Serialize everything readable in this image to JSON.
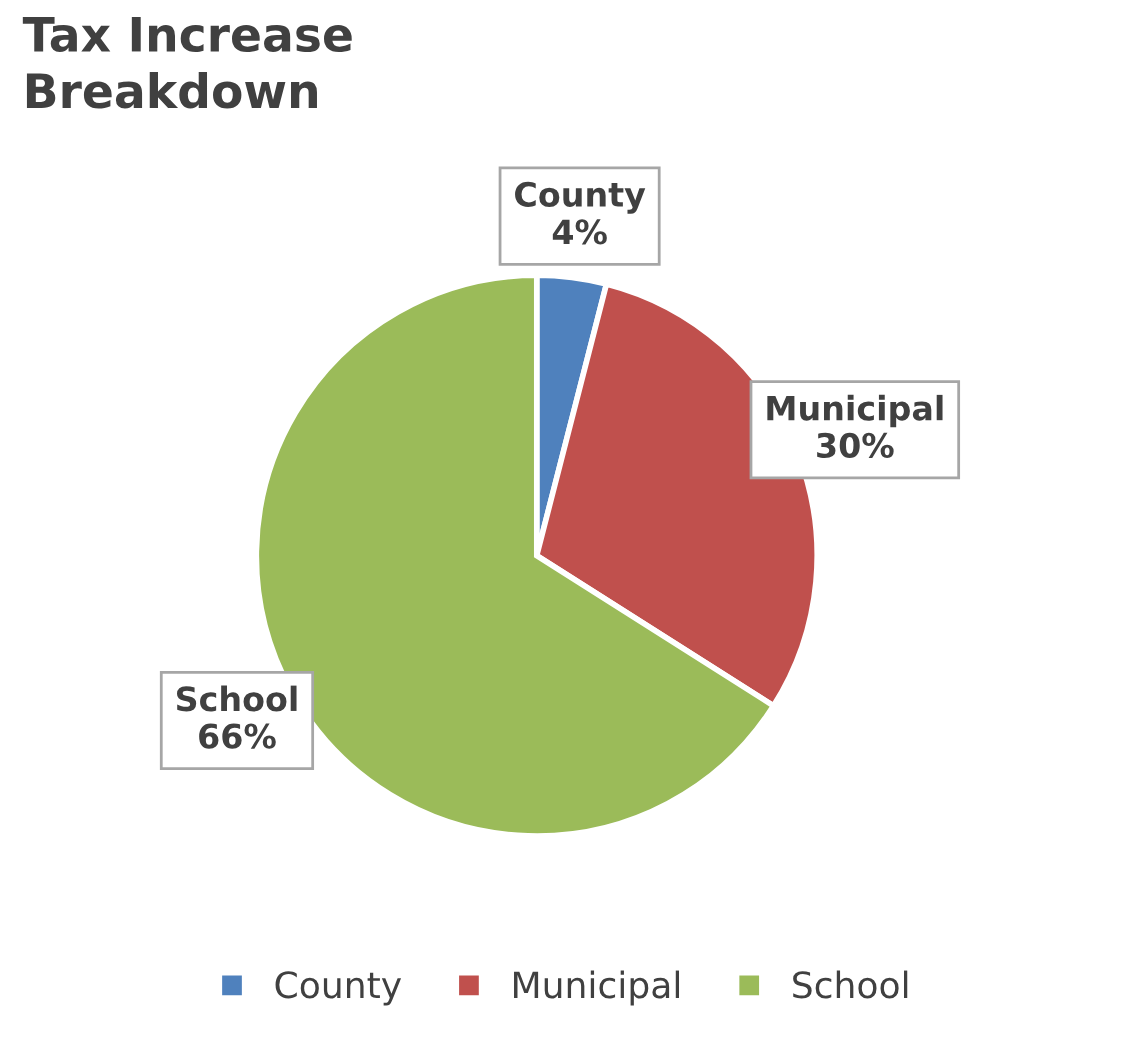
{
  "chart_data": {
    "type": "pie",
    "title": "Tax Increase\nBreakdown",
    "categories": [
      "County",
      "Municipal",
      "School"
    ],
    "values": [
      4,
      30,
      66
    ],
    "colors": [
      "#4f81bd",
      "#c0504d",
      "#9bbb59"
    ],
    "value_labels": [
      "4%",
      "30%",
      "66%"
    ],
    "legend": "bottom"
  }
}
